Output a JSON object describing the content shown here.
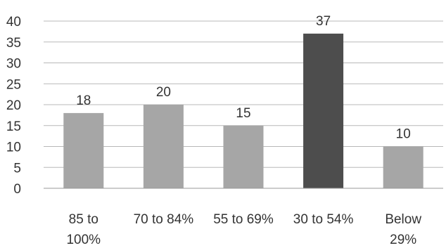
{
  "chart_data": {
    "type": "bar",
    "categories": [
      [
        "85 to",
        "100%"
      ],
      [
        "70 to 84%"
      ],
      [
        "55 to 69%"
      ],
      [
        "30 to 54%"
      ],
      [
        "Below",
        "29%"
      ]
    ],
    "values": [
      18,
      20,
      15,
      37,
      10
    ],
    "data_labels": [
      "18",
      "20",
      "15",
      "37",
      "10"
    ],
    "title": "",
    "xlabel": "",
    "ylabel": "",
    "ylim": [
      0,
      40
    ],
    "yticks": [
      0,
      5,
      10,
      15,
      20,
      25,
      30,
      35,
      40
    ],
    "grid": true,
    "legend": "none",
    "colors": {
      "bar": "#a6a6a6",
      "highlight_bar": "#4d4d4d",
      "grid": "#b8b8b8",
      "axis": "#999999",
      "text": "#333333"
    },
    "highlight_index": 3
  }
}
